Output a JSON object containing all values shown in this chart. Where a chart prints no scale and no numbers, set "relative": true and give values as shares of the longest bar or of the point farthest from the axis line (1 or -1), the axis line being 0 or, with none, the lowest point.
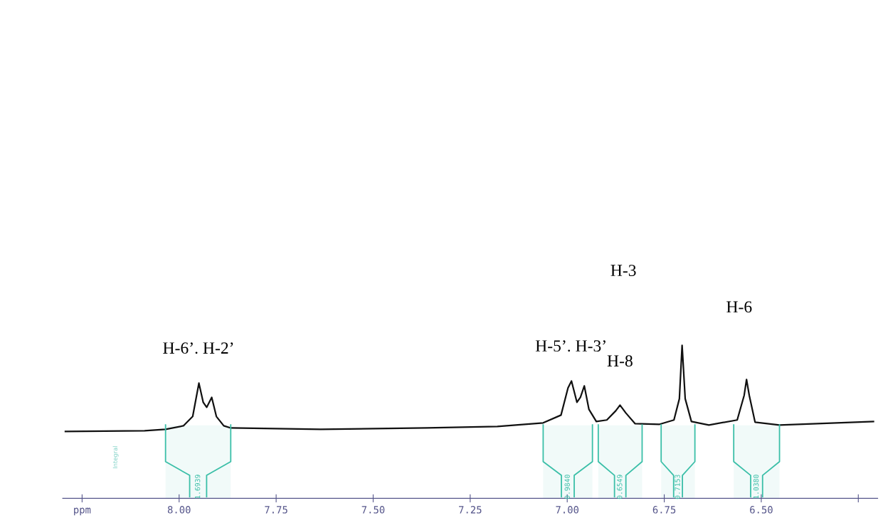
{
  "chart_data": {
    "type": "line",
    "relative": true,
    "xlim": [
      8.3,
      6.2
    ],
    "xticks": [
      {
        "value": 8.25,
        "label": "ppm"
      },
      {
        "value": 8.0,
        "label": "8.00"
      },
      {
        "value": 7.75,
        "label": "7.75"
      },
      {
        "value": 7.5,
        "label": "7.50"
      },
      {
        "value": 7.25,
        "label": "7.25"
      },
      {
        "value": 7.0,
        "label": "7.00"
      },
      {
        "value": 6.75,
        "label": "6.75"
      },
      {
        "value": 6.5,
        "label": "6.50"
      },
      {
        "value": 6.25,
        "label": null
      }
    ],
    "grid": false,
    "legend": false,
    "marker": "none",
    "line_style": "solid",
    "series": [
      {
        "color": "#111111",
        "x": [
          8.293,
          8.089,
          8.035,
          7.989,
          7.965,
          7.949,
          7.938,
          7.929,
          7.916,
          7.904,
          7.885,
          7.867,
          7.635,
          7.362,
          7.18,
          7.062,
          7.016,
          6.998,
          6.989,
          6.975,
          6.966,
          6.956,
          6.944,
          6.925,
          6.898,
          6.875,
          6.864,
          6.849,
          6.825,
          6.762,
          6.725,
          6.711,
          6.704,
          6.696,
          6.68,
          6.635,
          6.562,
          6.544,
          6.538,
          6.531,
          6.516,
          6.453,
          6.211
        ],
        "values": [
          0.437,
          0.442,
          0.451,
          0.474,
          0.535,
          0.753,
          0.628,
          0.595,
          0.66,
          0.535,
          0.474,
          0.46,
          0.451,
          0.46,
          0.47,
          0.493,
          0.544,
          0.721,
          0.767,
          0.628,
          0.66,
          0.735,
          0.581,
          0.502,
          0.512,
          0.572,
          0.609,
          0.558,
          0.488,
          0.484,
          0.512,
          0.651,
          1.0,
          0.651,
          0.502,
          0.479,
          0.512,
          0.674,
          0.777,
          0.674,
          0.498,
          0.479,
          0.502
        ]
      }
    ],
    "bands": [
      {
        "axis": "x",
        "from": 8.035,
        "to": 7.867,
        "label": "1.6939",
        "color": "#3bbfa8"
      },
      {
        "axis": "x",
        "from": 7.062,
        "to": 6.935,
        "label": "0.9840",
        "color": "#3bbfa8"
      },
      {
        "axis": "x",
        "from": 6.92,
        "to": 6.807,
        "label": "0.6549",
        "color": "#3bbfa8"
      },
      {
        "axis": "x",
        "from": 6.758,
        "to": 6.671,
        "label": "0.7153",
        "color": "#3bbfa8"
      },
      {
        "axis": "x",
        "from": 6.571,
        "to": 6.453,
        "label": "1.0380",
        "color": "#3bbfa8"
      }
    ],
    "annotations": [
      {
        "text": "H-6’. H-2’",
        "x": 7.95,
        "y": 0.753
      },
      {
        "text": "H-5’. H-3’",
        "x": 6.99,
        "y": 0.767
      },
      {
        "text": "H-8",
        "x": 6.864,
        "y": 0.609
      },
      "H-3",
      "H-6",
      "Integral"
    ]
  }
}
